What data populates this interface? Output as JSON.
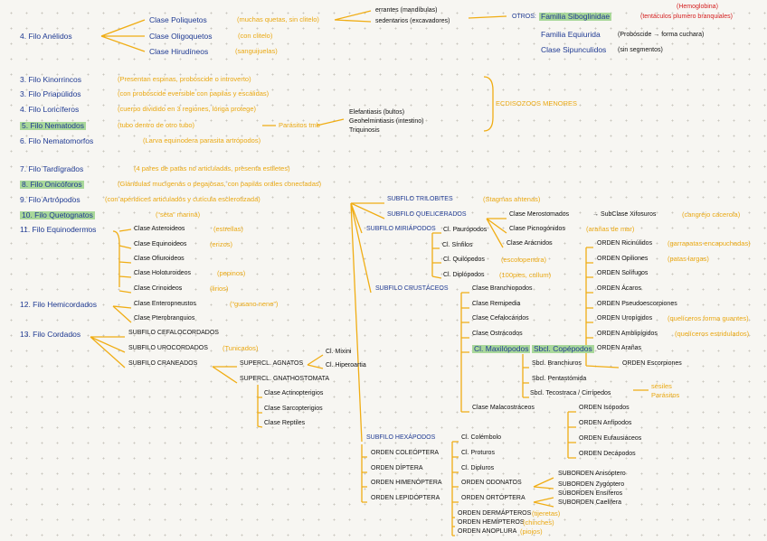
{
  "notes": [
    "4. Filo Anélidos",
    "Clase Poliquetos",
    "(muchas quetas, sin clitelo)",
    "Clase Oligoquetos",
    "(con clitelo)",
    "Clase Hirudíneos",
    "(sanguijuelas)",
    "errantes (mandíbulas)",
    "sedentarios (excavadores)",
    "OTROS:",
    "Familia Siboglinidae",
    "(tentáculos plumero branquiales)",
    "(Hemoglobina)",
    "Familia Equiurida",
    "(Probóscide → forma cuchara)",
    "Clase Sipunculidos",
    "(sin segmentos)",
    "3. Filo Kinorrincos",
    "(Presentan espinas, probóscide o introverto)",
    "3. Filo Priapúlidos",
    "(con probóscide eversible con papilas y escálidas)",
    "4. Filo Loricíferos",
    "(cuerpo dividido en 3 regiones, lóriga protege)",
    "5. Filo Nematodos",
    "(tubo dentro de otro tubo)",
    "Parásitos tmb",
    "6. Filo Nematomorfos",
    "(Larva equinodera parasita artrópodos)",
    "Elefantiasis (bultos)",
    "Geohelmintiasis (intestino)",
    "Triquinosis",
    "ECDISOZOOS MENORES",
    "7. Filo Tardígrados",
    "(4 pares de patas no articuladas, presenta estiletes)",
    "8. Filo Onicóforos",
    "(Glándulas mucígenas o pegajosas, con papilas orales conectadas)",
    "9. Filo Artrópodos",
    "(con apéndices articulados y cutícula esclerotizada)",
    "10. Filo Quetognatos",
    "(“seta” marina)",
    "11. Filo Equinodermos",
    "Clase Asteroideos",
    "(estrellas)",
    "Clase Equinoideos",
    "(erizos)",
    "Clase Ofiuroideos",
    "Clase Holoturoideos",
    "(pepinos)",
    "Clase Crinoideos",
    "(lirios)",
    "12. Filo Hemicordados",
    "Clase Enteropneustos",
    "(“gusano nene”)",
    "Clase Pterobranquios",
    "13. Filo Cordados",
    "SUBFILO CEFALOCORDADOS",
    "SUBFILO UROCORDADOS",
    "(Tunicados)",
    "SUBFILO CRANEADOS",
    "SUPERCL. AGNATOS",
    "Cl. Mixini",
    "Cl. Hiperoartia",
    "SUPERCL. GNATHOSTOMATA",
    "Clase Actinopterigios",
    "Clase Sarcopterigios",
    "Clase Reptiles",
    "SUBFILO TRILOBITES",
    "(Stagmas antenas)",
    "SUBFILO QUELICERADOS",
    "SUBFILO MIRIÁPODOS",
    "Cl. Paurópodos",
    "Cl. Sínfilos",
    "Cl. Quilópodos",
    "(escolopendra)",
    "Cl. Diplópodos",
    "(100pies, cullum)",
    "Clase Merostomados",
    "→ SubClase Xifosuros",
    "(cangrejo cacerola)",
    "Clase Picnogónidos",
    "(arañas de mar)",
    "Clase Arácnidos",
    "ORDEN Ricinúlidos",
    "(garrapatas encapuchadas)",
    "ORDEN Opiliones",
    "(patas largas)",
    "ORDEN Solífugos",
    "ORDEN Ácaros",
    "ORDEN Pseudoescorpiones",
    "ORDEN Uropígidos",
    "(quelíceros forma guantes)",
    "ORDEN Amblipígidos",
    "(quelíceros estridulados)",
    "ORDEN Arañas",
    "ORDEN Escorpiones",
    "SUBFILO CRUSTÁCEOS",
    "Clase Branchiopodos",
    "Clase Remipedia",
    "Clase Cefalocáridos",
    "Clase Ostrácodos",
    "Cl. Maxilópodos",
    "Sbcl. Copépodos",
    "Sbcl. Branchiuros",
    "Sbcl. Pentastómida",
    "Sbcl. Tecostraca / Cirrípedos",
    "sésiles",
    "Parásitos",
    "Clase Malacostráceos",
    "ORDEN Isópodos",
    "ORDEN Anfípodos",
    "ORDEN Eufausiáceos",
    "ORDEN Decápodos",
    "SUBFILO HEXÁPODOS",
    "Cl. Colémbolo",
    "Cl. Proturos",
    "Cl. Dipluros",
    "ORDEN COLEÓPTERA",
    "ORDEN DÍPTERA",
    "ORDEN HIMENÓPTERA",
    "ORDEN LEPIDÓPTERA",
    "ORDEN ODONATOS",
    "ORDEN ORTÓPTERA",
    "ORDEN DERMÁPTEROS",
    "(tijeretas)",
    "ORDEN HEMÍPTEROS",
    "(chinches)",
    "ORDEN ANOPLURA",
    "(piojos)",
    "SUBORDEN Anisóptero",
    "SUBORDEN Zygóptero",
    "SUBORDEN Ensíferos",
    "SUBORDEN Caelífera"
  ]
}
